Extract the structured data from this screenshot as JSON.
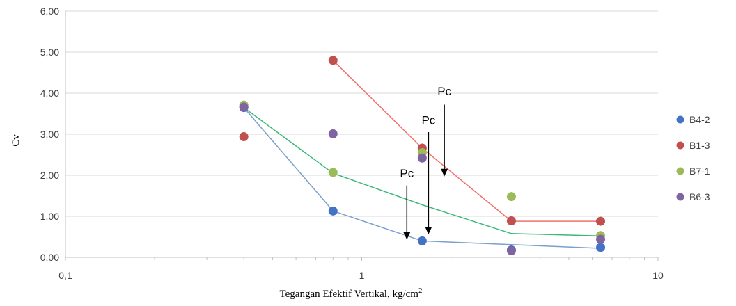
{
  "chart_data": {
    "type": "scatter",
    "title": "",
    "xlabel": "Tegangan  Efektif Vertikal, kg/cm",
    "xlabel_sup": "2",
    "ylabel": "Cv",
    "x_scale": "log",
    "xlim": [
      0.1,
      10
    ],
    "ylim": [
      0,
      6
    ],
    "x_ticks": [
      {
        "value": 0.1,
        "label": "0,1"
      },
      {
        "value": 1,
        "label": "1"
      },
      {
        "value": 10,
        "label": "10"
      }
    ],
    "y_ticks": [
      {
        "value": 0,
        "label": "0,00"
      },
      {
        "value": 1,
        "label": "1,00"
      },
      {
        "value": 2,
        "label": "2,00"
      },
      {
        "value": 3,
        "label": "3,00"
      },
      {
        "value": 4,
        "label": "4,00"
      },
      {
        "value": 5,
        "label": "5,00"
      },
      {
        "value": 6,
        "label": "6,00"
      }
    ],
    "grid": "horizontal",
    "legend_position": "right",
    "series": [
      {
        "name": "B4-2",
        "color": "#4472c4",
        "points": [
          [
            0.4,
            3.65
          ],
          [
            0.8,
            1.13
          ],
          [
            1.6,
            0.4
          ],
          [
            3.2,
            0.18
          ],
          [
            6.4,
            0.24
          ]
        ]
      },
      {
        "name": "B1-3",
        "color": "#c0504d",
        "points": [
          [
            0.4,
            2.94
          ],
          [
            0.8,
            4.8
          ],
          [
            1.6,
            2.66
          ],
          [
            3.2,
            0.89
          ],
          [
            6.4,
            0.88
          ]
        ]
      },
      {
        "name": "B7-1",
        "color": "#9bbb59",
        "points": [
          [
            0.4,
            3.71
          ],
          [
            0.8,
            2.07
          ],
          [
            1.6,
            2.55
          ],
          [
            3.2,
            1.48
          ],
          [
            6.4,
            0.53
          ]
        ]
      },
      {
        "name": "B6-3",
        "color": "#8064a2",
        "points": [
          [
            0.4,
            3.66
          ],
          [
            0.8,
            3.01
          ],
          [
            1.6,
            2.42
          ],
          [
            3.2,
            0.16
          ],
          [
            6.4,
            0.44
          ]
        ]
      }
    ],
    "trend_lines": [
      {
        "series": "B4-2",
        "color": "#7aa0cc",
        "points": [
          [
            0.4,
            3.65
          ],
          [
            0.8,
            1.13
          ],
          [
            1.6,
            0.4
          ],
          [
            3.2,
            0.31
          ],
          [
            6.4,
            0.22
          ]
        ]
      },
      {
        "series": "B1-3",
        "color": "#f0706a",
        "points": [
          [
            0.8,
            4.8
          ],
          [
            1.6,
            2.66
          ],
          [
            3.2,
            0.88
          ],
          [
            6.4,
            0.88
          ]
        ]
      },
      {
        "series": "B7-1",
        "color": "#3cb878",
        "points": [
          [
            0.4,
            3.65
          ],
          [
            0.8,
            2.05
          ],
          [
            1.6,
            1.28
          ],
          [
            3.2,
            0.58
          ],
          [
            6.4,
            0.52
          ]
        ]
      }
    ],
    "annotations": [
      {
        "text": "Pc",
        "x": 1.42,
        "y_text": 1.95,
        "arrow_from": 1.75,
        "arrow_to": 0.43
      },
      {
        "text": "Pc",
        "x": 1.68,
        "y_text": 3.25,
        "arrow_from": 3.05,
        "arrow_to": 0.56
      },
      {
        "text": "Pc",
        "x": 1.9,
        "y_text": 3.95,
        "arrow_from": 3.72,
        "arrow_to": 1.97
      }
    ]
  }
}
